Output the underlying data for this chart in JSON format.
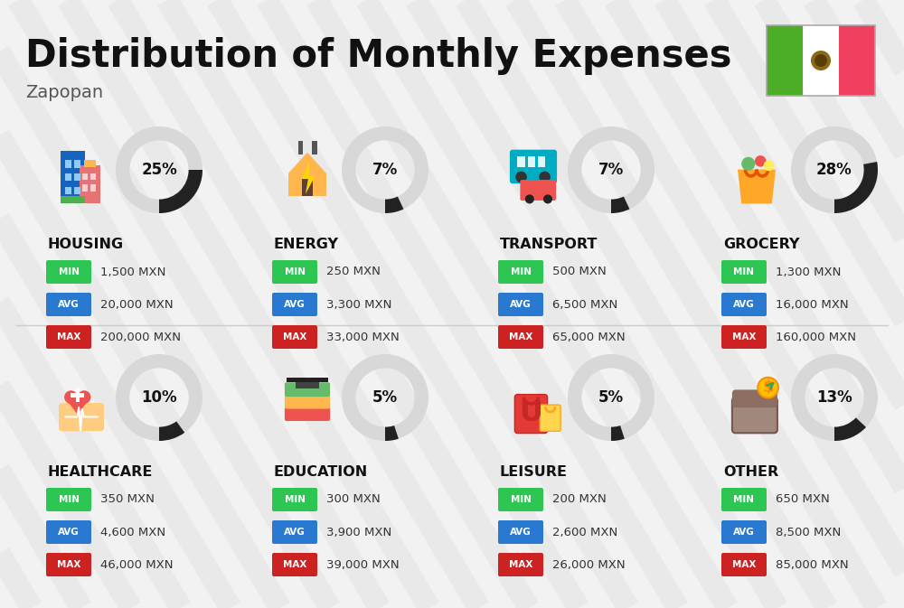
{
  "title": "Distribution of Monthly Expenses",
  "subtitle": "Zapopan",
  "background_color": "#f2f2f2",
  "categories": [
    {
      "name": "HOUSING",
      "percent": 25,
      "min": "1,500 MXN",
      "avg": "20,000 MXN",
      "max": "200,000 MXN",
      "row": 0,
      "col": 0
    },
    {
      "name": "ENERGY",
      "percent": 7,
      "min": "250 MXN",
      "avg": "3,300 MXN",
      "max": "33,000 MXN",
      "row": 0,
      "col": 1
    },
    {
      "name": "TRANSPORT",
      "percent": 7,
      "min": "500 MXN",
      "avg": "6,500 MXN",
      "max": "65,000 MXN",
      "row": 0,
      "col": 2
    },
    {
      "name": "GROCERY",
      "percent": 28,
      "min": "1,300 MXN",
      "avg": "16,000 MXN",
      "max": "160,000 MXN",
      "row": 0,
      "col": 3
    },
    {
      "name": "HEALTHCARE",
      "percent": 10,
      "min": "350 MXN",
      "avg": "4,600 MXN",
      "max": "46,000 MXN",
      "row": 1,
      "col": 0
    },
    {
      "name": "EDUCATION",
      "percent": 5,
      "min": "300 MXN",
      "avg": "3,900 MXN",
      "max": "39,000 MXN",
      "row": 1,
      "col": 1
    },
    {
      "name": "LEISURE",
      "percent": 5,
      "min": "200 MXN",
      "avg": "2,600 MXN",
      "max": "26,000 MXN",
      "row": 1,
      "col": 2
    },
    {
      "name": "OTHER",
      "percent": 13,
      "min": "650 MXN",
      "avg": "8,500 MXN",
      "max": "85,000 MXN",
      "row": 1,
      "col": 3
    }
  ],
  "min_color": "#2dc653",
  "avg_color": "#2979d0",
  "max_color": "#cc2222",
  "label_color": "#ffffff",
  "category_color": "#111111",
  "value_color": "#333333",
  "circle_bg": "#d8d8d8",
  "circle_arc": "#222222",
  "percent_color": "#111111",
  "stripe_color": "#e6e6e6",
  "flag_green": "#4caf27",
  "flag_white": "#ffffff",
  "flag_red": "#f04060",
  "divider_color": "#cccccc"
}
